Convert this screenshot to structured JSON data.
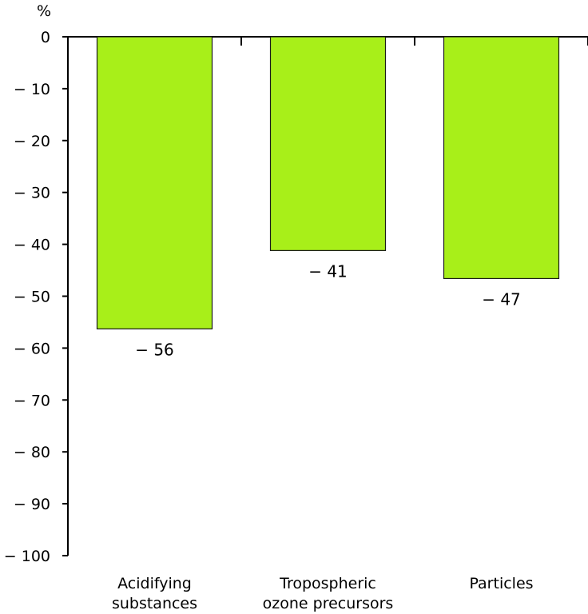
{
  "chart_data": {
    "type": "bar",
    "unit_label": "%",
    "categories": [
      [
        "Acidifying",
        "substances"
      ],
      [
        "Tropospheric",
        "ozone precursors"
      ],
      [
        "Particles"
      ]
    ],
    "values": [
      -56.3,
      -41.2,
      -46.6
    ],
    "value_labels": [
      "− 56",
      "− 41",
      "− 47"
    ],
    "ylim": [
      -100,
      0
    ],
    "yticks": [
      0,
      -10,
      -20,
      -30,
      -40,
      -50,
      -60,
      -70,
      -80,
      -90,
      -100
    ],
    "ytick_labels": [
      "0",
      "− 10",
      "− 20",
      "− 30",
      "− 40",
      "− 50",
      "− 60",
      "− 70",
      "− 80",
      "− 90",
      "− 100"
    ],
    "colors": {
      "bar_fill": "#a8ef19",
      "bar_stroke": "#1a1a1a",
      "axis": "#000000"
    },
    "grid": false,
    "legend": "none"
  }
}
